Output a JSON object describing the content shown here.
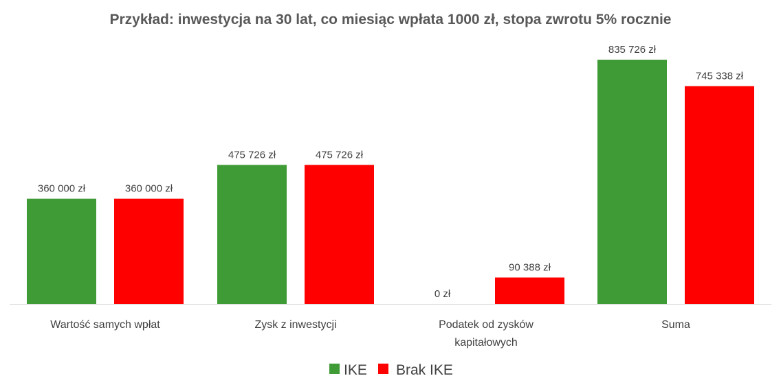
{
  "chart_data": {
    "type": "bar",
    "title": "Przykład: inwestycja na 30 lat, co miesiąc wpłata 1000 zł, stopa zwrotu 5% rocznie",
    "categories": [
      [
        "Wartość samych wpłat"
      ],
      [
        "Zysk z inwestycji"
      ],
      [
        "Podatek od zysków",
        "kapitałowych"
      ],
      [
        "Suma"
      ]
    ],
    "series": [
      {
        "name": "IKE",
        "color": "#3f9b35",
        "values": [
          360000,
          475726,
          0,
          835726
        ],
        "labels": [
          "360 000 zł",
          "475 726 zł",
          "0 zł",
          "835 726 zł"
        ]
      },
      {
        "name": "Brak IKE",
        "color": "#ff0000",
        "values": [
          360000,
          475726,
          90388,
          745338
        ],
        "labels": [
          "360 000 zł",
          "475 726 zł",
          "90 388 zł",
          "745 338 zł"
        ]
      }
    ],
    "ylim": [
      0,
      900000
    ],
    "grid": false,
    "legend_position": "bottom",
    "xlabel": "",
    "ylabel": ""
  }
}
